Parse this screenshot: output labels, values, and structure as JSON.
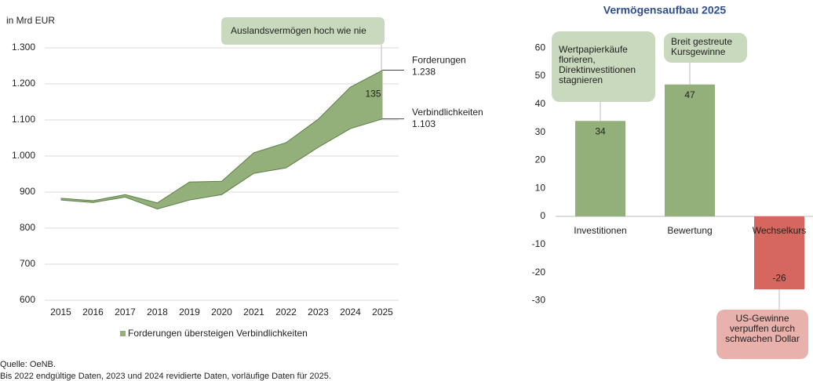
{
  "chart_data": [
    {
      "type": "area",
      "ylabel": "in Mrd EUR",
      "categories": [
        "2015",
        "2016",
        "2017",
        "2018",
        "2019",
        "2020",
        "2021",
        "2022",
        "2023",
        "2024",
        "2025"
      ],
      "series": [
        {
          "name": "Forderungen",
          "color": "#5f7f49",
          "values": [
            883,
            876,
            893,
            870,
            928,
            930,
            1009,
            1037,
            1102,
            1191,
            1238
          ],
          "value_labels": [
            null,
            null,
            null,
            null,
            null,
            null,
            null,
            null,
            null,
            null,
            "1.238"
          ]
        },
        {
          "name": "Verbindlichkeiten",
          "color": "#5f7f49",
          "values": [
            878,
            871,
            886,
            853,
            878,
            893,
            952,
            967,
            1024,
            1076,
            1103
          ],
          "value_labels": [
            null,
            null,
            null,
            null,
            null,
            null,
            null,
            null,
            null,
            null,
            "1.103"
          ]
        }
      ],
      "fill_color": "#93b07a",
      "difference_label": "135",
      "callout": "Auslandsvermögen hoch wie nie",
      "legend": "Forderungen übersteigen Verbindlichkeiten",
      "ylim": [
        600,
        1300
      ],
      "yticks": [
        600,
        700,
        800,
        900,
        {
          "value": 1000,
          "label": "1.000"
        },
        {
          "value": 1100,
          "label": "1.100"
        },
        {
          "value": 1200,
          "label": "1.200"
        },
        {
          "value": 1300,
          "label": "1.300"
        }
      ],
      "grid": true,
      "source": "Quelle: OeNB.",
      "note": "Bis 2022 endgültige Daten, 2023 und 2024 revidierte Daten, vorläufige Daten für 2025."
    },
    {
      "type": "bar",
      "title": "Vermögensaufbau 2025",
      "categories": [
        "Investitionen",
        "Bewertung",
        "Wechselkurs"
      ],
      "values": [
        34,
        47,
        -26
      ],
      "colors": [
        "#93b07a",
        "#93b07a",
        "#d6675e"
      ],
      "callouts": [
        [
          "Wertpapierkäufe",
          "florieren,",
          "Direktinvestitionen",
          "stagnieren"
        ],
        [
          "Breit gestreute",
          "Kursgewinne"
        ],
        [
          "US-Gewinne",
          "verpuffen durch",
          "schwachen Dollar"
        ]
      ],
      "ylim": [
        -30,
        60
      ],
      "yticks": [
        -30,
        -20,
        -10,
        0,
        10,
        20,
        30,
        40,
        50,
        60
      ],
      "grid": false
    }
  ]
}
